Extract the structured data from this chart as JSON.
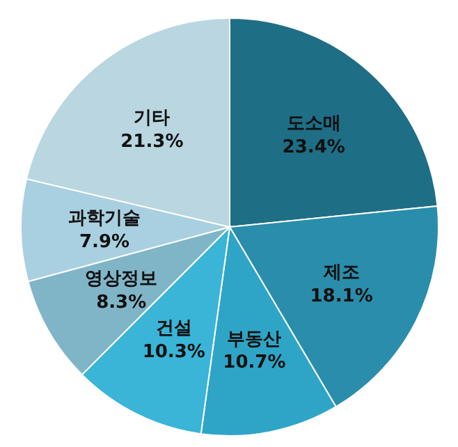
{
  "chart_data": {
    "type": "pie",
    "categories": [
      "도소매",
      "제조",
      "부동산",
      "건설",
      "영상정보",
      "과학기술",
      "기타"
    ],
    "values": [
      23.4,
      18.1,
      10.7,
      10.3,
      8.3,
      7.9,
      21.3
    ],
    "colors": [
      "#1e6e86",
      "#2a8dab",
      "#2ea5c7",
      "#3ab4d7",
      "#80b5c8",
      "#a9d0e0",
      "#b9d6e1"
    ],
    "value_labels": [
      "23.4%",
      "18.1%",
      "10.7%",
      "10.3%",
      "8.3%",
      "7.9%",
      "21.3%"
    ]
  }
}
